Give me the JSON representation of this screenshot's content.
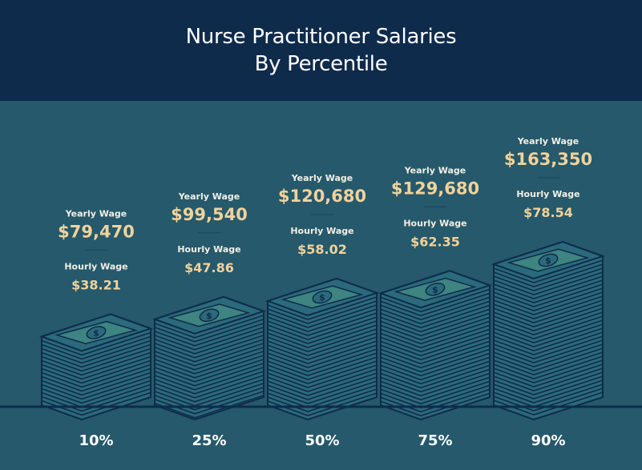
{
  "title": [
    "Nurse Practitioner Salaries",
    "By Percentile"
  ],
  "colors": {
    "header": "#0f2b4c",
    "background": "#25596b",
    "stack": "#2b6a7a",
    "stack_line": "#0f2b4c",
    "bill": "#3e8481",
    "value_text": "#f1d29c"
  },
  "chart_data": {
    "type": "bar",
    "categories": [
      "10%",
      "25%",
      "50%",
      "75%",
      "90%"
    ],
    "series": [
      {
        "name": "Yearly Wage",
        "values": [
          79470,
          99540,
          120680,
          129680,
          163350
        ],
        "labels": [
          "$79,470",
          "$99,540",
          "$120,680",
          "$129,680",
          "$163,350"
        ]
      },
      {
        "name": "Hourly Wage",
        "values": [
          38.21,
          47.86,
          58.02,
          62.35,
          78.54
        ],
        "labels": [
          "$38.21",
          "$47.86",
          "$58.02",
          "$62.35",
          "$78.54"
        ]
      }
    ],
    "ylim": [
      0,
      180000
    ],
    "legend": "none",
    "grid": false,
    "bar_icon": "money-stack-icon"
  }
}
